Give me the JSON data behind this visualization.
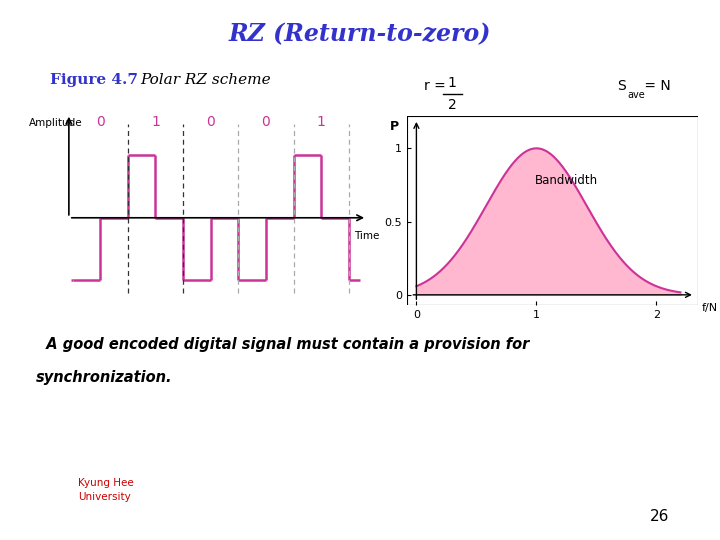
{
  "title": "RZ (Return-to-zero)",
  "title_color": "#3333cc",
  "title_bg_color": "#f2c0d0",
  "fig_bg_color": "#ffffff",
  "figure_label": "Figure 4.7",
  "figure_label_color": "#3333cc",
  "scheme_label": "Polar RZ scheme",
  "scheme_label_color": "#000000",
  "bits": [
    0,
    1,
    0,
    0,
    1
  ],
  "bit_color": "#cc3399",
  "signal_color": "#cc3399",
  "signal_lw": 1.8,
  "dashed_color_dark": "#333333",
  "dashed_color_light": "#aaaaaa",
  "bandwidth_fill_color": "#ffb8d0",
  "bandwidth_line_color": "#cc3399",
  "yellow_box_color": "#ffff00",
  "bottom_text_line1": "  A good encoded digital signal must contain a provision for",
  "bottom_text_line2": "synchronization.",
  "bottom_text_color": "#000000",
  "page_number": "26",
  "footer_text": "Kyung Hee\nUniversity",
  "footer_color": "#cc0000"
}
